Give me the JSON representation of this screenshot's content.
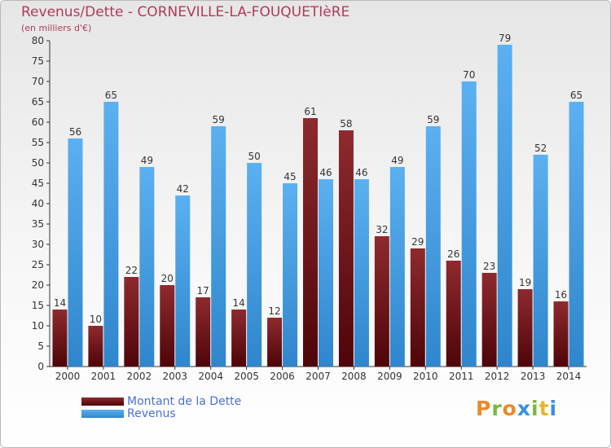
{
  "header": {
    "title": "Revenus/Dette - CORNEVILLE-LA-FOUQUETIèRE",
    "subtitle": "(en milliers d'€)"
  },
  "legend": {
    "items": [
      {
        "label": "Montant de la Dette",
        "color": "#7a1a1e"
      },
      {
        "label": "Revenus",
        "color": "#4aa3e6"
      }
    ]
  },
  "logo": {
    "letters": [
      {
        "char": "P",
        "color": "#e98a2b"
      },
      {
        "char": "r",
        "color": "#79b843"
      },
      {
        "char": "o",
        "color": "#e98a2b"
      },
      {
        "char": "x",
        "color": "#3a8ee0"
      },
      {
        "char": "i",
        "color": "#79b843"
      },
      {
        "char": "t",
        "color": "#e9b42b"
      },
      {
        "char": "i",
        "color": "#3a8ee0"
      }
    ]
  },
  "chart_data": {
    "type": "bar",
    "title": "Revenus/Dette - CORNEVILLE-LA-FOUQUETIèRE",
    "subtitle": "(en milliers d'€)",
    "categories": [
      "2000",
      "2001",
      "2002",
      "2003",
      "2004",
      "2005",
      "2006",
      "2007",
      "2008",
      "2009",
      "2010",
      "2011",
      "2012",
      "2013",
      "2014"
    ],
    "series": [
      {
        "name": "Montant de la Dette",
        "color": "#7a1a1e",
        "values": [
          14,
          10,
          22,
          20,
          17,
          14,
          12,
          61,
          58,
          32,
          29,
          26,
          23,
          19,
          16
        ]
      },
      {
        "name": "Revenus",
        "color": "#4aa3e6",
        "values": [
          56,
          65,
          49,
          42,
          59,
          50,
          45,
          46,
          46,
          49,
          59,
          70,
          79,
          52,
          65
        ]
      }
    ],
    "ylim": [
      0,
      80
    ],
    "yticks": [
      0,
      5,
      10,
      15,
      20,
      25,
      30,
      35,
      40,
      45,
      50,
      55,
      60,
      65,
      70,
      75,
      80
    ],
    "grid": false,
    "legend_position": "bottom-left"
  }
}
